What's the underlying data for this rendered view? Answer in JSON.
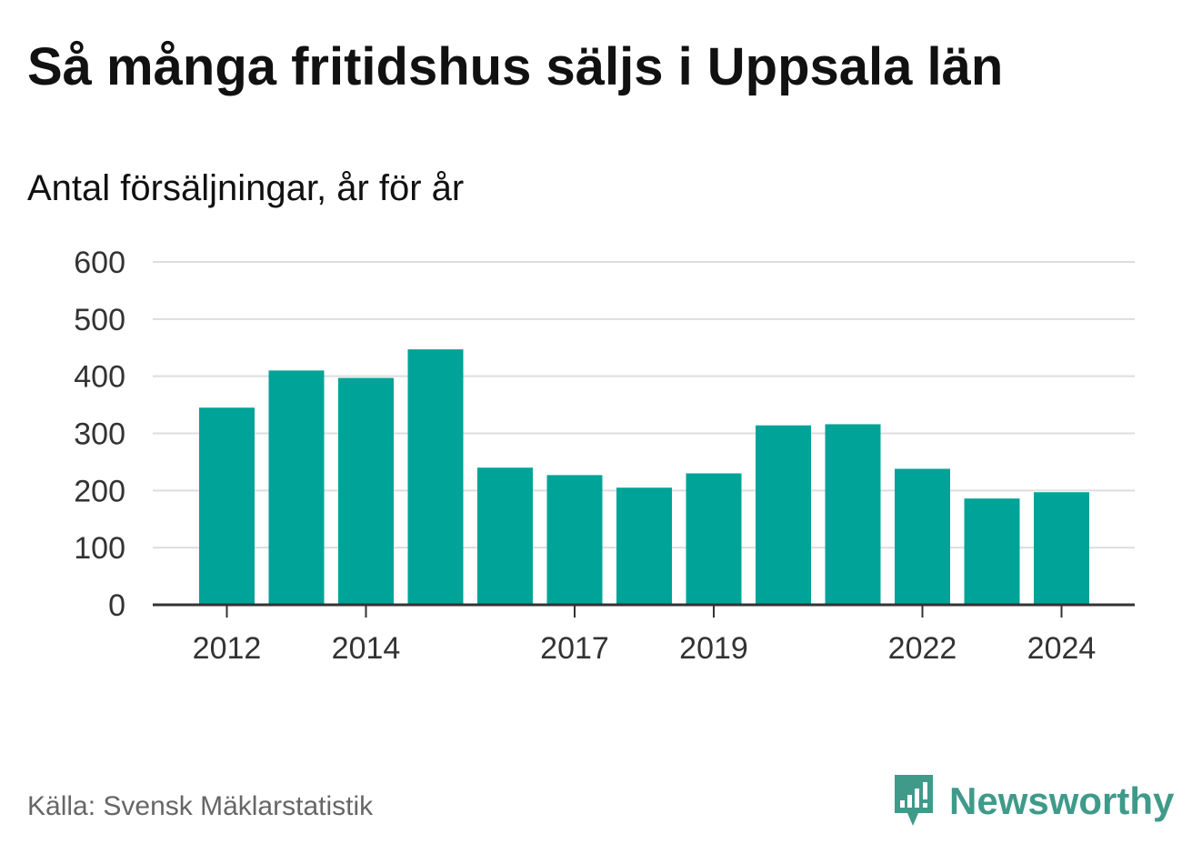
{
  "title": "Så många fritidshus säljs i Uppsala län",
  "subtitle": "Antal försäljningar, år för år",
  "source": "Källa: Svensk Mäklarstatistik",
  "brand": {
    "name": "Newsworthy",
    "icon": "newsworthy-logo-icon"
  },
  "colors": {
    "bar": "#00a398",
    "grid": "#dddddd",
    "axis": "#333333",
    "brand": "#3f9a8a"
  },
  "chart_data": {
    "type": "bar",
    "title": "Så många fritidshus säljs i Uppsala län",
    "subtitle": "Antal försäljningar, år för år",
    "xlabel": "",
    "ylabel": "",
    "categories": [
      "2012",
      "2013",
      "2014",
      "2015",
      "2016",
      "2017",
      "2018",
      "2019",
      "2020",
      "2021",
      "2022",
      "2023",
      "2024"
    ],
    "values": [
      345,
      410,
      397,
      447,
      240,
      227,
      205,
      230,
      314,
      316,
      238,
      186,
      197
    ],
    "x_tick_labels": [
      "2012",
      "2014",
      "2017",
      "2019",
      "2022",
      "2024"
    ],
    "y_ticks": [
      0,
      100,
      200,
      300,
      400,
      500,
      600
    ],
    "ylim": [
      0,
      600
    ],
    "grid": true,
    "legend": "none"
  }
}
